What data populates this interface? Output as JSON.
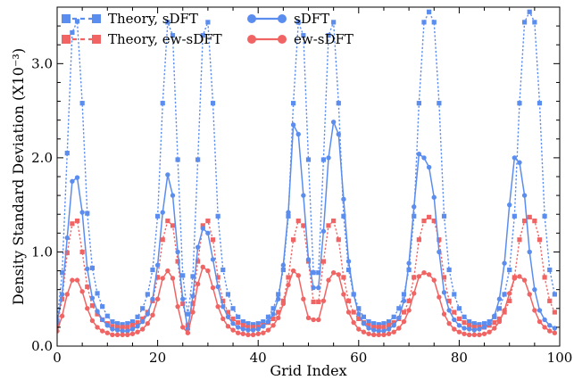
{
  "chart_data": {
    "type": "line",
    "xlabel": "Grid Index",
    "ylabel": "Density Standard Deviation (X10⁻³)",
    "xlim": [
      0,
      100
    ],
    "ylim": [
      0,
      3.6
    ],
    "xticks": [
      "0",
      "20",
      "40",
      "60",
      "80",
      "100"
    ],
    "yticks": [
      "0.0",
      "1.0",
      "2.0",
      "3.0"
    ],
    "xtick_values": [
      0,
      20,
      40,
      60,
      80,
      100
    ],
    "ytick_values": [
      0,
      1,
      2,
      3
    ],
    "grid": false,
    "legend_position": "top-left",
    "x": [
      0,
      1,
      2,
      3,
      4,
      5,
      6,
      7,
      8,
      9,
      10,
      11,
      12,
      13,
      14,
      15,
      16,
      17,
      18,
      19,
      20,
      21,
      22,
      23,
      24,
      25,
      26,
      27,
      28,
      29,
      30,
      31,
      32,
      33,
      34,
      35,
      36,
      37,
      38,
      39,
      40,
      41,
      42,
      43,
      44,
      45,
      46,
      47,
      48,
      49,
      50,
      51,
      52,
      53,
      54,
      55,
      56,
      57,
      58,
      59,
      60,
      61,
      62,
      63,
      64,
      65,
      66,
      67,
      68,
      69,
      70,
      71,
      72,
      73,
      74,
      75,
      76,
      77,
      78,
      79,
      80,
      81,
      82,
      83,
      84,
      85,
      86,
      87,
      88,
      89,
      90,
      91,
      92,
      93,
      94,
      95,
      96,
      97,
      98,
      99
    ],
    "series": [
      {
        "name": "Theory, sDFT",
        "color": "#5b8def",
        "line_style": "dotted",
        "marker": "square",
        "values": [
          0.27,
          0.78,
          2.05,
          3.33,
          3.45,
          2.58,
          1.41,
          0.83,
          0.56,
          0.42,
          0.32,
          0.26,
          0.24,
          0.23,
          0.24,
          0.26,
          0.31,
          0.4,
          0.55,
          0.81,
          1.38,
          2.58,
          3.44,
          3.3,
          1.98,
          0.75,
          0.34,
          0.74,
          1.98,
          3.3,
          3.44,
          2.58,
          1.38,
          0.81,
          0.55,
          0.4,
          0.31,
          0.26,
          0.24,
          0.23,
          0.24,
          0.26,
          0.31,
          0.4,
          0.55,
          0.81,
          1.38,
          2.58,
          3.44,
          3.3,
          1.98,
          0.78,
          0.78,
          1.98,
          3.3,
          3.44,
          2.58,
          1.38,
          0.81,
          0.55,
          0.4,
          0.31,
          0.26,
          0.24,
          0.23,
          0.24,
          0.26,
          0.31,
          0.4,
          0.55,
          0.81,
          1.38,
          2.58,
          3.44,
          3.55,
          3.44,
          2.58,
          1.38,
          0.81,
          0.55,
          0.4,
          0.31,
          0.26,
          0.24,
          0.23,
          0.24,
          0.26,
          0.31,
          0.4,
          0.55,
          0.81,
          1.38,
          2.58,
          3.44,
          3.55,
          3.44,
          2.58,
          1.38,
          0.81,
          0.55
        ]
      },
      {
        "name": "Theory, ew-sDFT",
        "color": "#f06464",
        "line_style": "dotted",
        "marker": "square",
        "values": [
          0.22,
          0.5,
          0.99,
          1.3,
          1.33,
          1.0,
          0.63,
          0.43,
          0.34,
          0.28,
          0.24,
          0.21,
          0.2,
          0.2,
          0.2,
          0.22,
          0.25,
          0.29,
          0.36,
          0.48,
          0.73,
          1.13,
          1.33,
          1.28,
          0.9,
          0.45,
          0.22,
          0.45,
          0.9,
          1.28,
          1.33,
          1.13,
          0.73,
          0.48,
          0.36,
          0.29,
          0.25,
          0.22,
          0.2,
          0.2,
          0.2,
          0.22,
          0.25,
          0.29,
          0.36,
          0.48,
          0.73,
          1.13,
          1.33,
          1.28,
          0.9,
          0.47,
          0.47,
          0.9,
          1.28,
          1.33,
          1.13,
          0.73,
          0.48,
          0.36,
          0.29,
          0.25,
          0.22,
          0.2,
          0.2,
          0.2,
          0.22,
          0.25,
          0.29,
          0.36,
          0.48,
          0.73,
          1.13,
          1.33,
          1.37,
          1.33,
          1.13,
          0.73,
          0.48,
          0.36,
          0.29,
          0.25,
          0.22,
          0.2,
          0.2,
          0.2,
          0.22,
          0.25,
          0.29,
          0.36,
          0.48,
          0.73,
          1.13,
          1.33,
          1.37,
          1.33,
          1.13,
          0.73,
          0.48,
          0.36
        ]
      },
      {
        "name": "sDFT",
        "color": "#5b8def",
        "line_style": "solid",
        "marker": "circle",
        "values": [
          0.25,
          0.55,
          1.15,
          1.75,
          1.79,
          1.42,
          0.82,
          0.51,
          0.37,
          0.28,
          0.22,
          0.18,
          0.17,
          0.16,
          0.16,
          0.18,
          0.21,
          0.26,
          0.34,
          0.5,
          0.86,
          1.42,
          1.82,
          1.6,
          1.0,
          0.5,
          0.18,
          0.53,
          1.05,
          1.25,
          1.2,
          0.92,
          0.63,
          0.42,
          0.31,
          0.24,
          0.2,
          0.18,
          0.17,
          0.17,
          0.18,
          0.21,
          0.26,
          0.34,
          0.5,
          0.86,
          1.42,
          2.35,
          2.25,
          1.6,
          0.92,
          0.62,
          0.62,
          1.22,
          2.0,
          2.38,
          2.25,
          1.56,
          0.9,
          0.55,
          0.34,
          0.24,
          0.19,
          0.17,
          0.16,
          0.16,
          0.18,
          0.22,
          0.3,
          0.48,
          0.88,
          1.48,
          2.04,
          2.0,
          1.9,
          1.58,
          1.0,
          0.57,
          0.38,
          0.28,
          0.22,
          0.19,
          0.18,
          0.17,
          0.18,
          0.2,
          0.24,
          0.32,
          0.5,
          0.88,
          1.5,
          2.0,
          1.95,
          1.6,
          1.0,
          0.6,
          0.38,
          0.28,
          0.22,
          0.19
        ]
      },
      {
        "name": "ew-sDFT",
        "color": "#f06464",
        "line_style": "solid",
        "marker": "circle",
        "values": [
          0.16,
          0.32,
          0.55,
          0.7,
          0.7,
          0.58,
          0.4,
          0.27,
          0.2,
          0.16,
          0.14,
          0.12,
          0.12,
          0.12,
          0.12,
          0.13,
          0.15,
          0.18,
          0.24,
          0.33,
          0.5,
          0.72,
          0.8,
          0.72,
          0.42,
          0.2,
          0.14,
          0.36,
          0.66,
          0.84,
          0.8,
          0.62,
          0.42,
          0.29,
          0.21,
          0.17,
          0.14,
          0.13,
          0.12,
          0.12,
          0.13,
          0.14,
          0.17,
          0.22,
          0.3,
          0.45,
          0.65,
          0.8,
          0.75,
          0.5,
          0.3,
          0.28,
          0.28,
          0.48,
          0.7,
          0.78,
          0.76,
          0.55,
          0.36,
          0.25,
          0.18,
          0.15,
          0.13,
          0.12,
          0.12,
          0.12,
          0.13,
          0.15,
          0.19,
          0.26,
          0.38,
          0.56,
          0.74,
          0.78,
          0.76,
          0.7,
          0.52,
          0.34,
          0.24,
          0.18,
          0.15,
          0.13,
          0.12,
          0.12,
          0.12,
          0.13,
          0.15,
          0.19,
          0.26,
          0.38,
          0.56,
          0.72,
          0.74,
          0.7,
          0.55,
          0.38,
          0.26,
          0.2,
          0.16,
          0.14
        ]
      }
    ]
  }
}
